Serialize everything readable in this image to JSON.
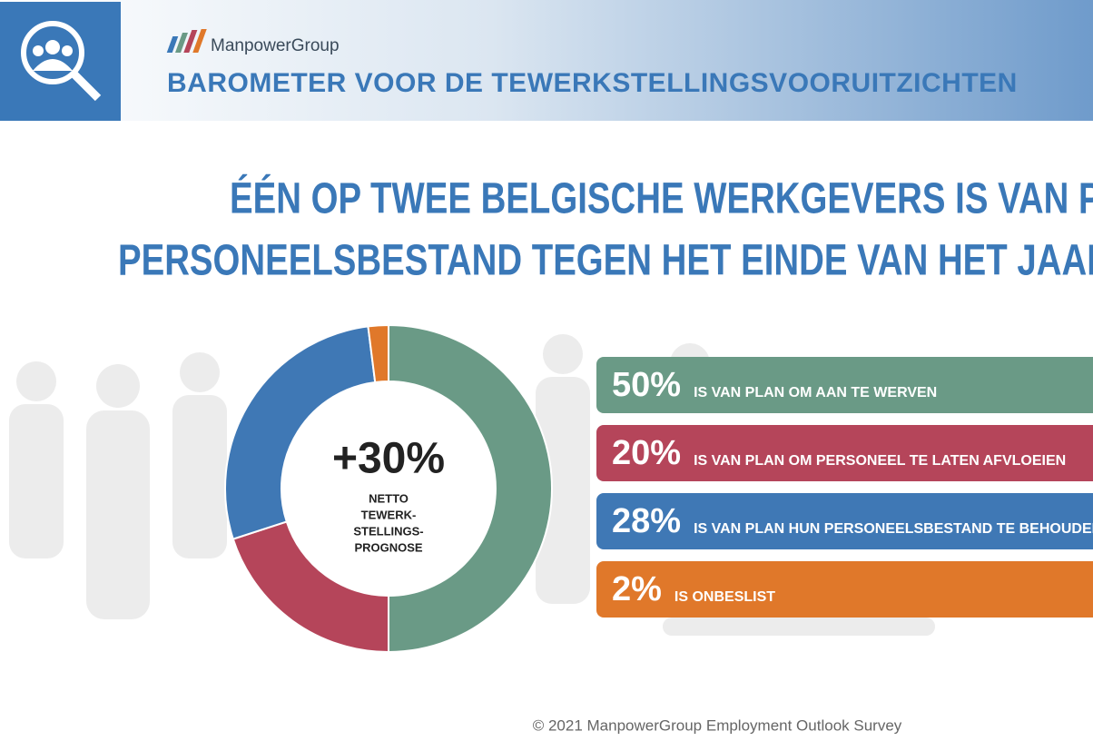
{
  "header": {
    "logo": "ManpowerGroup",
    "title": "BAROMETER VOOR DE TEWERKSTELLINGSVOORUITZICHTEN"
  },
  "headline": [
    "ÉÉN OP TWEE BELGISCHE WERKGEVERS IS VAN PLAN",
    "PERSONEELSBESTAND TEGEN HET EINDE VAN HET JAAR UIT"
  ],
  "footer": "© 2021 ManpowerGroup Employment Outlook Survey",
  "chart_data": {
    "type": "pie",
    "donut": true,
    "categories": [
      "IS VAN PLAN OM AAN TE WERVEN",
      "IS VAN PLAN OM PERSONEEL TE LATEN AFVLOEIEN",
      "IS VAN PLAN HUN PERSONEELSBESTAND TE BEHOUDEN",
      "IS ONBESLIST"
    ],
    "values": [
      50,
      20,
      28,
      2
    ],
    "value_labels": [
      "50%",
      "20%",
      "28%",
      "2%"
    ],
    "colors": [
      "#6a9a86",
      "#b5455a",
      "#3f78b5",
      "#e0782a"
    ],
    "center_label": "+30%",
    "center_caption": [
      "NETTO",
      "TEWERK-",
      "STELLINGS-",
      "PROGNOSE"
    ]
  }
}
